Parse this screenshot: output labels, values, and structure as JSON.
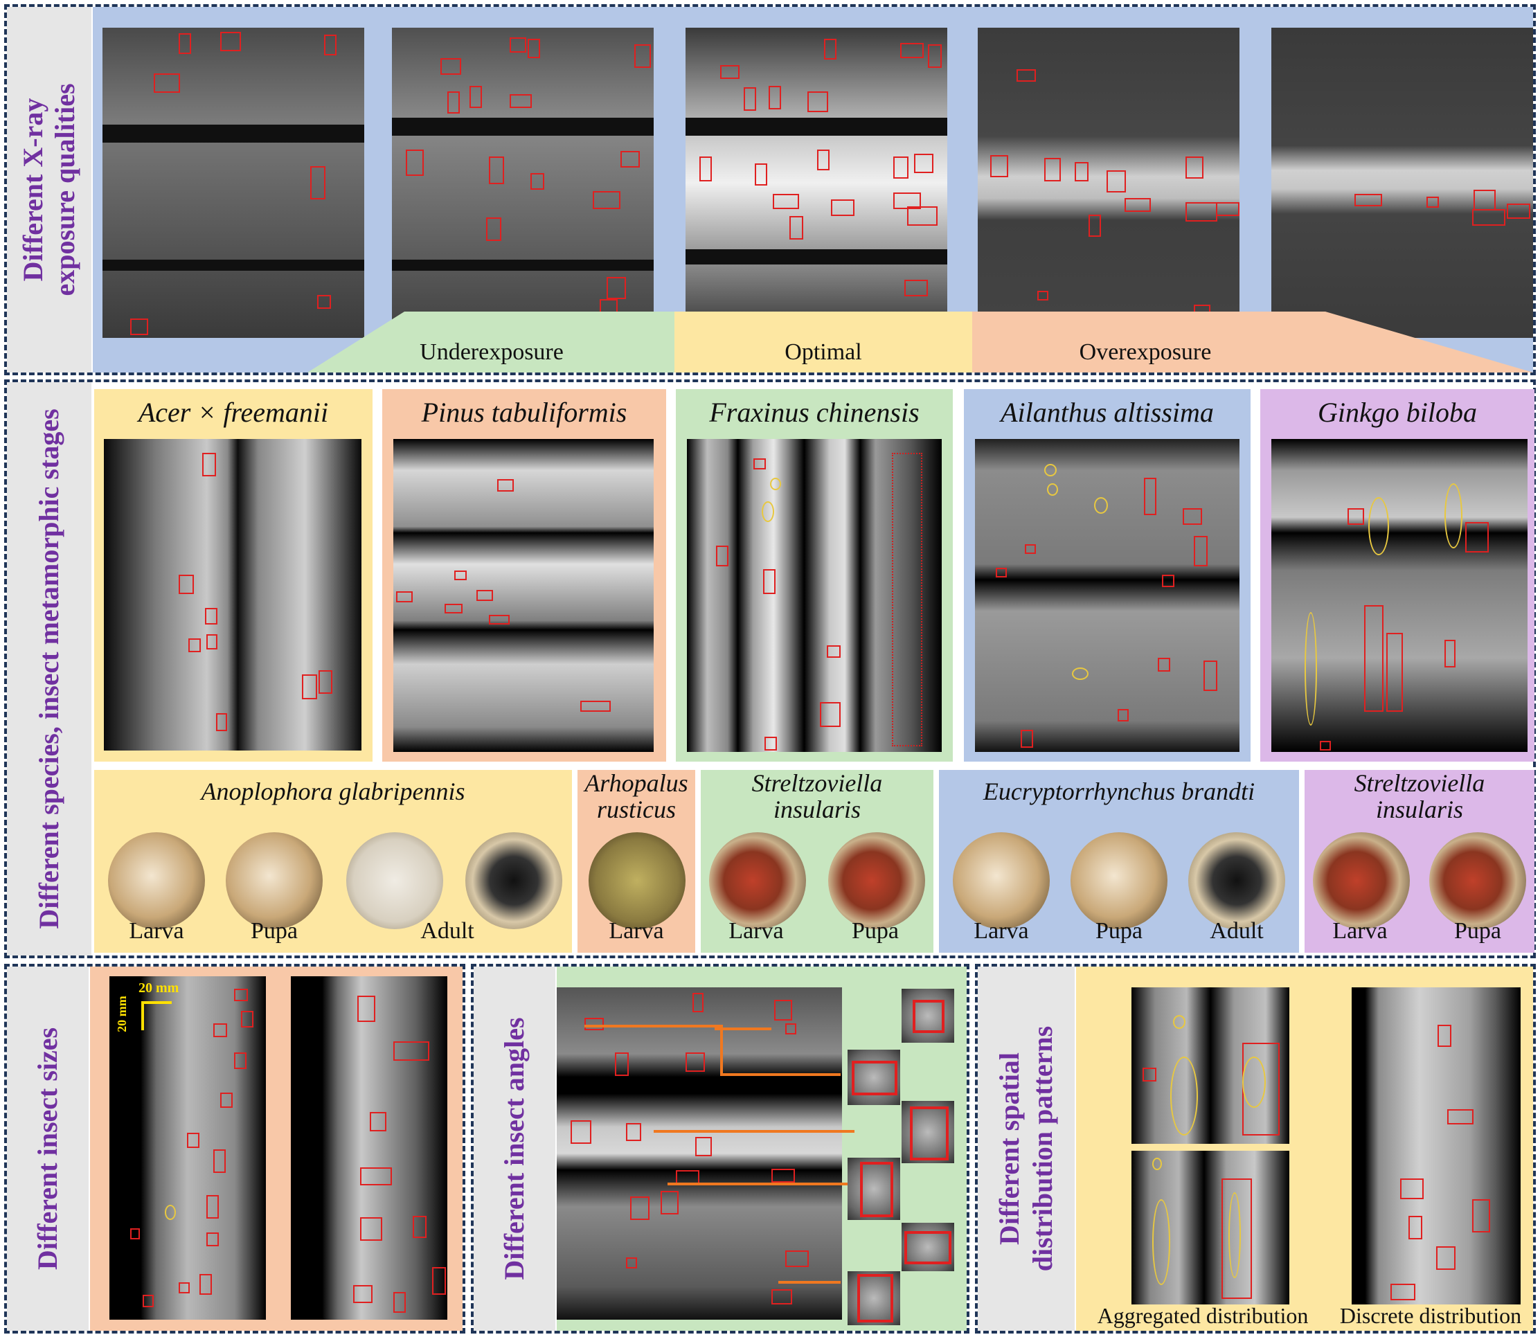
{
  "panel1": {
    "side_label": "Different X-ray\nexposure qualities",
    "exposure_labels": [
      "Underexposure",
      "Optimal",
      "Overexposure"
    ],
    "colors": {
      "blue": "#b4c7e7",
      "green": "#c8e6c0",
      "yellow": "#fde7a2",
      "orange": "#f8c8a8"
    }
  },
  "panel2": {
    "side_label": "Different species, insect metamorphic stages",
    "species": [
      "Acer × freemanii",
      "Pinus tabuliformis",
      "Fraxinus chinensis",
      "Ailanthus altissima",
      "Ginkgo biloba"
    ],
    "insects": [
      {
        "name": "Anoplophora glabripennis",
        "stages": [
          "Larva",
          "Pupa",
          "Adult"
        ]
      },
      {
        "name": "Arhopalus\nrusticus",
        "stages": [
          "Larva"
        ]
      },
      {
        "name": "Streltzoviella\ninsularis",
        "stages": [
          "Larva",
          "Pupa"
        ]
      },
      {
        "name": "Eucryptorrhynchus brandti",
        "stages": [
          "Larva",
          "Pupa",
          "Adult"
        ]
      },
      {
        "name": "Streltzoviella\ninsularis",
        "stages": [
          "Larva",
          "Pupa"
        ]
      }
    ],
    "colors": {
      "yellow": "#fde7a2",
      "orange": "#f8c8a8",
      "green": "#c8e6c0",
      "blue": "#b4c7e7",
      "purple": "#dcb8e8"
    }
  },
  "panel3": {
    "side_label": "Different insect sizes",
    "scale_label": "20 mm",
    "scale_label_vertical": "20 mm"
  },
  "panel4": {
    "side_label": "Different insect angles"
  },
  "panel5": {
    "side_label": "Different spatial\ndistribution patterns",
    "captions": [
      "Aggregated distribution",
      "Discrete distribution"
    ]
  }
}
